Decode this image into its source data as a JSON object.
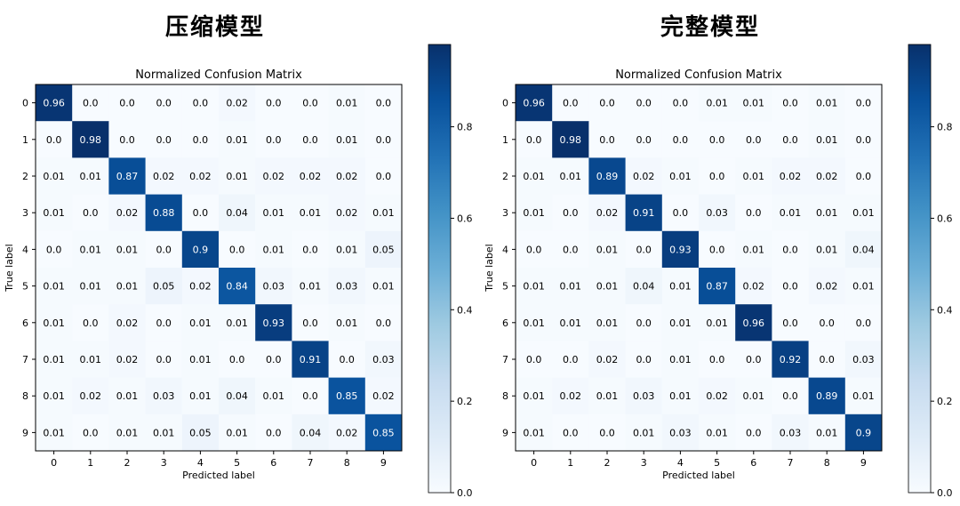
{
  "panels": [
    {
      "heading": "压缩模型"
    },
    {
      "heading": "完整模型"
    }
  ],
  "chart_data": [
    {
      "type": "heatmap",
      "title": "Normalized Confusion Matrix",
      "xlabel": "Predicted label",
      "ylabel": "True label",
      "categories": [
        "0",
        "1",
        "2",
        "3",
        "4",
        "5",
        "6",
        "7",
        "8",
        "9"
      ],
      "colormap": "Blues",
      "colorbar_ticks": [
        "0.0",
        "0.2",
        "0.4",
        "0.6",
        "0.8"
      ],
      "colorbar_range": [
        0,
        0.98
      ],
      "values": [
        [
          "0.96",
          "0.0",
          "0.0",
          "0.0",
          "0.0",
          "0.02",
          "0.0",
          "0.0",
          "0.01",
          "0.0"
        ],
        [
          "0.0",
          "0.98",
          "0.0",
          "0.0",
          "0.0",
          "0.01",
          "0.0",
          "0.0",
          "0.01",
          "0.0"
        ],
        [
          "0.01",
          "0.01",
          "0.87",
          "0.02",
          "0.02",
          "0.01",
          "0.02",
          "0.02",
          "0.02",
          "0.0"
        ],
        [
          "0.01",
          "0.0",
          "0.02",
          "0.88",
          "0.0",
          "0.04",
          "0.01",
          "0.01",
          "0.02",
          "0.01"
        ],
        [
          "0.0",
          "0.01",
          "0.01",
          "0.0",
          "0.9",
          "0.0",
          "0.01",
          "0.0",
          "0.01",
          "0.05"
        ],
        [
          "0.01",
          "0.01",
          "0.01",
          "0.05",
          "0.02",
          "0.84",
          "0.03",
          "0.01",
          "0.03",
          "0.01"
        ],
        [
          "0.01",
          "0.0",
          "0.02",
          "0.0",
          "0.01",
          "0.01",
          "0.93",
          "0.0",
          "0.01",
          "0.0"
        ],
        [
          "0.01",
          "0.01",
          "0.02",
          "0.0",
          "0.01",
          "0.0",
          "0.0",
          "0.91",
          "0.0",
          "0.03"
        ],
        [
          "0.01",
          "0.02",
          "0.01",
          "0.03",
          "0.01",
          "0.04",
          "0.01",
          "0.0",
          "0.85",
          "0.02"
        ],
        [
          "0.01",
          "0.0",
          "0.01",
          "0.01",
          "0.05",
          "0.01",
          "0.0",
          "0.04",
          "0.02",
          "0.85"
        ]
      ]
    },
    {
      "type": "heatmap",
      "title": "Normalized Confusion Matrix",
      "xlabel": "Predicted label",
      "ylabel": "True label",
      "categories": [
        "0",
        "1",
        "2",
        "3",
        "4",
        "5",
        "6",
        "7",
        "8",
        "9"
      ],
      "colormap": "Blues",
      "colorbar_ticks": [
        "0.0",
        "0.2",
        "0.4",
        "0.6",
        "0.8"
      ],
      "colorbar_range": [
        0,
        0.98
      ],
      "values": [
        [
          "0.96",
          "0.0",
          "0.0",
          "0.0",
          "0.0",
          "0.01",
          "0.01",
          "0.0",
          "0.01",
          "0.0"
        ],
        [
          "0.0",
          "0.98",
          "0.0",
          "0.0",
          "0.0",
          "0.0",
          "0.0",
          "0.0",
          "0.01",
          "0.0"
        ],
        [
          "0.01",
          "0.01",
          "0.89",
          "0.02",
          "0.01",
          "0.0",
          "0.01",
          "0.02",
          "0.02",
          "0.0"
        ],
        [
          "0.01",
          "0.0",
          "0.02",
          "0.91",
          "0.0",
          "0.03",
          "0.0",
          "0.01",
          "0.01",
          "0.01"
        ],
        [
          "0.0",
          "0.0",
          "0.01",
          "0.0",
          "0.93",
          "0.0",
          "0.01",
          "0.0",
          "0.01",
          "0.04"
        ],
        [
          "0.01",
          "0.01",
          "0.01",
          "0.04",
          "0.01",
          "0.87",
          "0.02",
          "0.0",
          "0.02",
          "0.01"
        ],
        [
          "0.01",
          "0.01",
          "0.01",
          "0.0",
          "0.01",
          "0.01",
          "0.96",
          "0.0",
          "0.0",
          "0.0"
        ],
        [
          "0.0",
          "0.0",
          "0.02",
          "0.0",
          "0.01",
          "0.0",
          "0.0",
          "0.92",
          "0.0",
          "0.03"
        ],
        [
          "0.01",
          "0.02",
          "0.01",
          "0.03",
          "0.01",
          "0.02",
          "0.01",
          "0.0",
          "0.89",
          "0.01"
        ],
        [
          "0.01",
          "0.0",
          "0.0",
          "0.01",
          "0.03",
          "0.01",
          "0.0",
          "0.03",
          "0.01",
          "0.9"
        ]
      ]
    }
  ]
}
